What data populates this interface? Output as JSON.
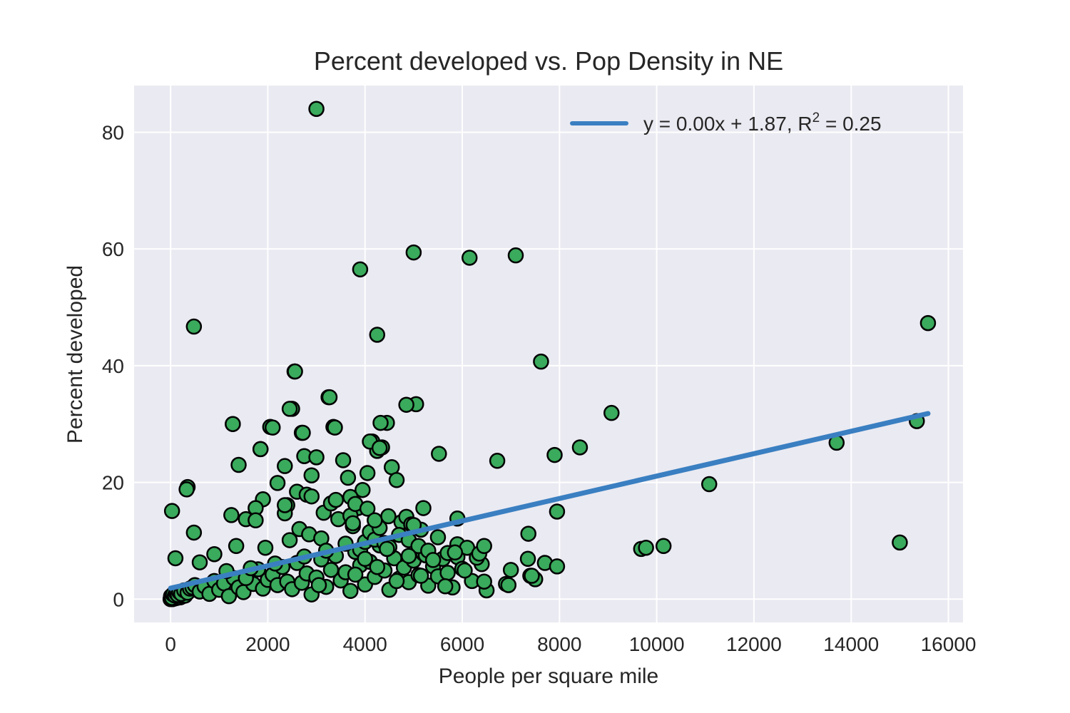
{
  "chart_data": {
    "type": "scatter",
    "title": "Percent developed vs. Pop Density in NE",
    "xlabel": "People per square mile",
    "ylabel": "Percent developed",
    "xlim": [
      -750,
      16300
    ],
    "ylim": [
      -4,
      88
    ],
    "x_ticks": [
      0,
      2000,
      4000,
      6000,
      8000,
      10000,
      12000,
      14000,
      16000
    ],
    "x_tick_labels": [
      "0",
      "2000",
      "4000",
      "6000",
      "8000",
      "10000",
      "12000",
      "14000",
      "16000"
    ],
    "y_ticks": [
      0,
      20,
      40,
      60,
      80
    ],
    "y_tick_labels": [
      "0",
      "20",
      "40",
      "60",
      "80"
    ],
    "grid": true,
    "legend_position": "upper right",
    "colors": {
      "background": "#eaeaf2",
      "grid": "#ffffff",
      "point_fill": "#3aaa5c",
      "point_edge": "#000000",
      "fit_line": "#3a7fc1"
    },
    "series": [
      {
        "kind": "points",
        "x": [
          0,
          20,
          40,
          60,
          80,
          100,
          130,
          160,
          200,
          250,
          300,
          10,
          30,
          50,
          90,
          120,
          150,
          180,
          220,
          280,
          350,
          400,
          450,
          500,
          600,
          700,
          800,
          900,
          1000,
          1100,
          1200,
          1300,
          1400,
          1500,
          1600,
          1700,
          1800,
          1900,
          2000,
          2100,
          2200,
          2300,
          2400,
          2500,
          2600,
          2700,
          2800,
          2900,
          3000,
          3100,
          3200,
          3300,
          3400,
          3500,
          3600,
          3700,
          3800,
          3900,
          4000,
          4100,
          4200,
          4300,
          4400,
          4500,
          4600,
          4700,
          4800,
          4900,
          5000,
          5100,
          5200,
          5300,
          5400,
          5500,
          5600,
          5700,
          5800,
          5900,
          6000,
          6200,
          6400,
          6500,
          6900,
          7000,
          7400,
          7500,
          7700,
          7950,
          30,
          100,
          480,
          350,
          330,
          1280,
          1400,
          1550,
          1850,
          1900,
          2050,
          2200,
          2350,
          2400,
          2500,
          2550,
          2600,
          2700,
          2750,
          2800,
          2900,
          3000,
          3150,
          3250,
          3350,
          3450,
          3550,
          3650,
          3750,
          3850,
          3950,
          4050,
          4150,
          4250,
          4350,
          4450,
          4550,
          4650,
          4750,
          4850,
          4950,
          5050,
          5150,
          5250,
          1750,
          1250,
          1750,
          2350,
          2650,
          2850,
          3100,
          3300,
          3400,
          3700,
          3750,
          3900,
          4000,
          4100,
          4200,
          4300,
          4400,
          4500,
          4700,
          4900,
          5000,
          5100,
          5300,
          5500,
          5700,
          5900,
          6100,
          6300,
          600,
          900,
          1150,
          1350,
          1550,
          1650,
          1950,
          2150,
          2450,
          2750,
          3050,
          3200,
          3600,
          3800,
          4000,
          4250,
          4450,
          4650,
          4900,
          5150,
          5400,
          5650,
          5850,
          6050,
          6350,
          6450,
          3000,
          5000,
          6150,
          7100,
          3900,
          4250,
          7620,
          480,
          2560,
          3270,
          4850,
          2450,
          9070,
          1280,
          4320,
          3380,
          2100,
          2720,
          4100,
          1850,
          5520,
          6720,
          4300,
          8420,
          7900,
          2350,
          2900,
          3700,
          3800,
          4050,
          4200,
          4480,
          5200,
          5900,
          7950,
          13700,
          15350,
          15580,
          11080,
          15000,
          9680,
          9780,
          10140,
          6950,
          7360,
          6450,
          7350,
          7430
        ],
        "y": [
          0,
          0.1,
          0,
          0.2,
          0.1,
          0.3,
          0.2,
          0.4,
          0.3,
          0.5,
          0.6,
          0.5,
          0.2,
          0.8,
          0.6,
          1.0,
          0.7,
          1.2,
          0.9,
          1.5,
          1.1,
          1.8,
          2.0,
          2.4,
          1.3,
          2.2,
          0.9,
          3.1,
          1.6,
          2.7,
          0.5,
          3.6,
          2.0,
          1.2,
          4.0,
          2.6,
          5.1,
          1.8,
          3.3,
          4.2,
          2.4,
          5.5,
          3.0,
          1.7,
          6.2,
          2.8,
          4.4,
          0.8,
          3.7,
          6.8,
          2.1,
          5.0,
          7.4,
          3.2,
          4.6,
          1.4,
          8.1,
          5.8,
          2.5,
          6.4,
          3.8,
          9.2,
          4.9,
          1.6,
          7.0,
          3.5,
          5.4,
          2.9,
          6.6,
          4.1,
          7.8,
          2.3,
          5.6,
          3.9,
          6.9,
          4.5,
          2.0,
          7.2,
          5.2,
          3.1,
          6.0,
          1.5,
          2.6,
          5.0,
          4.0,
          3.4,
          6.2,
          5.6,
          15.1,
          7.0,
          46.7,
          19.2,
          18.8,
          30.0,
          23.0,
          13.7,
          25.7,
          17.1,
          29.5,
          19.9,
          22.8,
          16.1,
          32.6,
          39.0,
          18.4,
          28.5,
          24.5,
          17.9,
          21.2,
          24.3,
          14.8,
          34.6,
          29.5,
          13.7,
          23.8,
          20.8,
          12.5,
          15.6,
          18.7,
          21.6,
          27.0,
          25.4,
          26.0,
          30.2,
          22.6,
          20.4,
          13.2,
          14.1,
          12.8,
          33.4,
          11.9,
          7.5,
          15.6,
          14.4,
          13.5,
          14.7,
          12.0,
          11.1,
          10.4,
          16.4,
          17.0,
          14.3,
          13.0,
          8.5,
          9.8,
          11.5,
          10.2,
          12.2,
          9.6,
          8.9,
          11.0,
          10.1,
          12.7,
          9.1,
          8.3,
          10.6,
          7.9,
          9.4,
          8.8,
          7.1,
          6.3,
          7.7,
          4.8,
          9.1,
          3.6,
          5.3,
          8.8,
          6.1,
          10.1,
          7.3,
          2.4,
          8.3,
          9.5,
          4.2,
          6.9,
          5.5,
          8.6,
          3.1,
          7.4,
          4.0,
          6.7,
          2.2,
          8.0,
          4.9,
          7.8,
          3.0,
          84.0,
          59.4,
          58.5,
          58.9,
          56.5,
          45.3,
          40.7,
          11.4,
          39.0,
          34.6,
          33.3,
          32.6,
          31.9,
          30.0,
          30.2,
          29.4,
          29.4,
          28.5,
          27.0,
          25.7,
          24.9,
          23.7,
          25.9,
          26.0,
          24.7,
          16.1,
          17.6,
          17.5,
          16.3,
          15.5,
          13.5,
          14.2,
          15.6,
          13.8,
          15.0,
          26.8,
          30.5,
          47.3,
          19.7,
          9.7,
          8.6,
          8.8,
          9.1,
          2.4,
          11.2,
          9.1,
          6.9,
          4.0
        ]
      },
      {
        "kind": "fit_line",
        "name": "y = 0.00x + 1.87, R² = 0.25",
        "x": [
          0,
          15580
        ],
        "y": [
          1.87,
          31.8
        ]
      }
    ]
  },
  "legend": {
    "prefix": "y = 0.00x + 1.87, R",
    "sup": "2",
    "suffix": " = 0.25"
  }
}
